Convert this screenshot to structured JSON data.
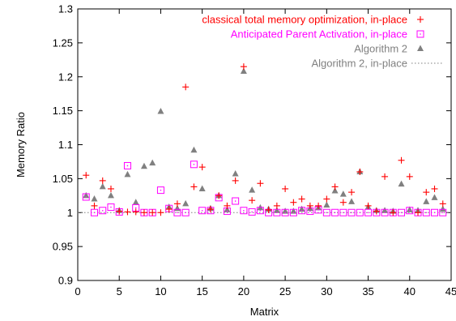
{
  "chart_data": {
    "type": "scatter",
    "xlabel": "Matrix",
    "ylabel": "Memory Ratio",
    "xlim": [
      0,
      45
    ],
    "ylim": [
      0.9,
      1.3
    ],
    "xticks": [
      "0",
      "5",
      "10",
      "15",
      "20",
      "25",
      "30",
      "35",
      "40",
      "45"
    ],
    "yticks": [
      "0.9",
      "0.95",
      "1",
      "1.05",
      "1.1",
      "1.15",
      "1.2",
      "1.25",
      "1.3"
    ],
    "grid": false,
    "legend_position": "top-right",
    "series": [
      {
        "name": "classical total memory optimization, in-place",
        "marker": "plus",
        "color": "#ff0000",
        "x": [
          1,
          2,
          3,
          4,
          5,
          6,
          7,
          8,
          9,
          10,
          11,
          12,
          13,
          14,
          15,
          16,
          17,
          18,
          19,
          20,
          21,
          22,
          23,
          24,
          25,
          26,
          27,
          28,
          29,
          30,
          31,
          32,
          33,
          34,
          35,
          36,
          37,
          38,
          39,
          40,
          41,
          42,
          43,
          44
        ],
        "y": [
          1.055,
          1.01,
          1.047,
          1.035,
          1.002,
          1.001,
          1.001,
          1.0,
          1.0,
          1.0,
          1.005,
          1.013,
          1.185,
          1.038,
          1.067,
          1.005,
          1.025,
          1.01,
          1.047,
          1.215,
          1.018,
          1.043,
          1.004,
          1.01,
          1.035,
          1.015,
          1.02,
          1.01,
          1.01,
          1.02,
          1.038,
          1.015,
          1.03,
          1.06,
          1.01,
          1.002,
          1.053,
          1.0,
          1.077,
          1.053,
          1.0,
          1.03,
          1.035,
          1.013
        ]
      },
      {
        "name": "Anticipated Parent Activation, in-place",
        "marker": "square",
        "color": "#ff00ff",
        "x": [
          1,
          2,
          3,
          4,
          5,
          6,
          7,
          8,
          9,
          10,
          11,
          12,
          13,
          14,
          15,
          16,
          17,
          18,
          19,
          20,
          21,
          22,
          23,
          24,
          25,
          26,
          27,
          28,
          29,
          30,
          31,
          32,
          33,
          34,
          35,
          36,
          37,
          38,
          39,
          40,
          41,
          42,
          43,
          44
        ],
        "y": [
          1.023,
          1.0,
          1.003,
          1.008,
          1.001,
          1.069,
          1.007,
          1.0,
          1.0,
          1.033,
          1.006,
          1.0,
          1.0,
          1.071,
          1.003,
          1.003,
          1.022,
          1.002,
          1.017,
          1.003,
          1.001,
          1.003,
          1.0,
          1.0,
          1.0,
          1.0,
          1.003,
          1.002,
          1.004,
          1.0,
          1.0,
          1.0,
          1.0,
          1.0,
          1.0,
          1.0,
          1.0,
          1.0,
          1.0,
          1.003,
          1.0,
          1.0,
          1.0,
          1.0
        ]
      },
      {
        "name": "Algorithm 2",
        "marker": "triangle",
        "color": "#808080",
        "x": [
          1,
          2,
          3,
          4,
          5,
          6,
          7,
          8,
          9,
          10,
          11,
          12,
          13,
          14,
          15,
          16,
          17,
          18,
          19,
          20,
          21,
          22,
          23,
          24,
          25,
          26,
          27,
          28,
          29,
          30,
          31,
          32,
          33,
          34,
          35,
          36,
          37,
          38,
          39,
          40,
          41,
          42,
          43,
          44
        ],
        "y": [
          1.025,
          1.02,
          1.038,
          1.025,
          1.003,
          1.056,
          1.015,
          1.068,
          1.073,
          1.149,
          1.008,
          1.006,
          1.013,
          1.092,
          1.035,
          1.006,
          1.025,
          1.004,
          1.057,
          1.208,
          1.033,
          1.007,
          1.005,
          1.003,
          1.002,
          1.002,
          1.005,
          1.006,
          1.007,
          1.011,
          1.032,
          1.027,
          1.016,
          1.06,
          1.008,
          1.003,
          1.003,
          1.002,
          1.042,
          1.004,
          1.003,
          1.016,
          1.022,
          1.005
        ]
      },
      {
        "name": "Algorithm 2, in-place",
        "marker": "dotted-line",
        "color": "#808080",
        "x": [
          0,
          45
        ],
        "y": [
          1.0,
          1.0
        ]
      }
    ]
  }
}
